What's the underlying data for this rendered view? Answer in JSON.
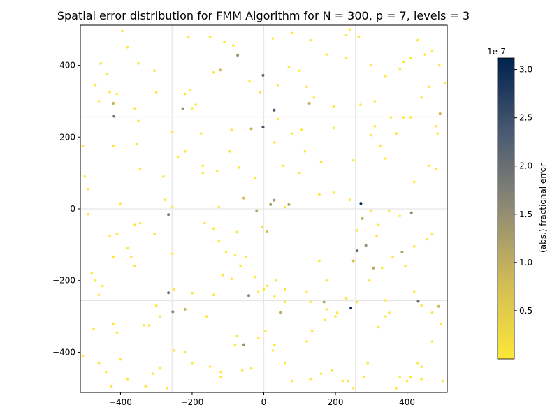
{
  "chart_data": {
    "type": "scatter",
    "title": "Spatial error distribution for FMM Algorithm for N = 300, p = 7, levels = 3",
    "xlabel": "",
    "ylabel": "",
    "xlim": [
      -512,
      512
    ],
    "ylim": [
      -512,
      512
    ],
    "xticks": [
      -400,
      -200,
      0,
      200,
      400
    ],
    "yticks": [
      -400,
      -200,
      0,
      200,
      400
    ],
    "tick_labels": {
      "x": [
        "−400",
        "−200",
        "0",
        "200",
        "400"
      ],
      "y": [
        "−400",
        "−200",
        "0",
        "200",
        "400"
      ]
    },
    "grid": true,
    "grid_lines": [
      -256,
      0,
      256
    ],
    "colormap": "cividis_r",
    "colorbar": {
      "label": "(abs.) fractional error",
      "offset_text": "1e-7",
      "vmin": 0.0,
      "vmax": 3.12,
      "ticks": [
        0.5,
        1.0,
        1.5,
        2.0,
        2.5,
        3.0
      ],
      "tick_labels": [
        "0.5",
        "1.0",
        "1.5",
        "2.0",
        "2.5",
        "3.0"
      ],
      "color_low": "#fde737",
      "color_high": "#00224e"
    },
    "points": [
      [
        271,
        15,
        3.1
      ],
      [
        243,
        -277,
        2.9
      ],
      [
        -2,
        228,
        2.5
      ],
      [
        29,
        275,
        2.4
      ],
      [
        -2,
        372,
        2.1
      ],
      [
        261,
        -117,
        2.1
      ],
      [
        431,
        -258,
        2.0
      ],
      [
        -266,
        -234,
        1.9
      ],
      [
        -418,
        258,
        1.8
      ],
      [
        -266,
        -16,
        1.8
      ],
      [
        -42,
        -242,
        1.7
      ],
      [
        -254,
        -287,
        1.7
      ],
      [
        412,
        -11,
        1.6
      ],
      [
        285,
        -102,
        1.5
      ],
      [
        -226,
        279,
        1.5
      ],
      [
        -73,
        428,
        1.4
      ],
      [
        -56,
        -379,
        1.4
      ],
      [
        19,
        12,
        1.3
      ],
      [
        29,
        24,
        1.3
      ],
      [
        70,
        12,
        1.2
      ],
      [
        386,
        -121,
        1.2
      ],
      [
        306,
        -165,
        1.1
      ],
      [
        168,
        -260,
        1.1
      ],
      [
        -20,
        -5,
        1.1
      ],
      [
        127,
        294,
        1.0
      ],
      [
        48,
        -289,
        1.0
      ],
      [
        275,
        -27,
        1.0
      ],
      [
        -220,
        -280,
        0.9
      ],
      [
        -420,
        294,
        0.9
      ],
      [
        -35,
        223,
        0.9
      ],
      [
        492,
        265,
        0.8
      ],
      [
        -122,
        387,
        0.8
      ],
      [
        488,
        -272,
        0.8
      ],
      [
        9,
        -63,
        0.7
      ],
      [
        -56,
        30,
        0.7
      ],
      [
        250,
        -145,
        0.7
      ]
    ],
    "points_low": [
      [
        -455,
        405
      ],
      [
        -438,
        375
      ],
      [
        -395,
        495
      ],
      [
        -380,
        450
      ],
      [
        -350,
        405
      ],
      [
        -305,
        385
      ],
      [
        -210,
        478
      ],
      [
        -150,
        480
      ],
      [
        -110,
        465
      ],
      [
        -85,
        455
      ],
      [
        25,
        475
      ],
      [
        80,
        490
      ],
      [
        130,
        470
      ],
      [
        175,
        430
      ],
      [
        230,
        485
      ],
      [
        240,
        500
      ],
      [
        265,
        480
      ],
      [
        300,
        400
      ],
      [
        340,
        370
      ],
      [
        380,
        390
      ],
      [
        390,
        410
      ],
      [
        410,
        420
      ],
      [
        430,
        470
      ],
      [
        450,
        430
      ],
      [
        470,
        440
      ],
      [
        490,
        400
      ],
      [
        505,
        350
      ],
      [
        -470,
        345
      ],
      [
        -460,
        300
      ],
      [
        -430,
        325
      ],
      [
        -410,
        320
      ],
      [
        -360,
        280
      ],
      [
        -300,
        325
      ],
      [
        -220,
        320
      ],
      [
        -205,
        330
      ],
      [
        -190,
        290
      ],
      [
        -200,
        280
      ],
      [
        -140,
        380
      ],
      [
        -90,
        220
      ],
      [
        -40,
        355
      ],
      [
        -10,
        325
      ],
      [
        40,
        345
      ],
      [
        70,
        395
      ],
      [
        100,
        385
      ],
      [
        120,
        340
      ],
      [
        140,
        310
      ],
      [
        195,
        285
      ],
      [
        230,
        420
      ],
      [
        270,
        290
      ],
      [
        310,
        300
      ],
      [
        355,
        255
      ],
      [
        390,
        255
      ],
      [
        410,
        255
      ],
      [
        440,
        310
      ],
      [
        460,
        340
      ],
      [
        480,
        230
      ],
      [
        485,
        210
      ],
      [
        -420,
        175
      ],
      [
        -350,
        245
      ],
      [
        -355,
        180
      ],
      [
        -255,
        215
      ],
      [
        -240,
        145
      ],
      [
        -220,
        160
      ],
      [
        -175,
        210
      ],
      [
        -170,
        120
      ],
      [
        -130,
        105
      ],
      [
        -95,
        160
      ],
      [
        -70,
        115
      ],
      [
        -25,
        85
      ],
      [
        30,
        185
      ],
      [
        40,
        250
      ],
      [
        55,
        120
      ],
      [
        80,
        210
      ],
      [
        105,
        220
      ],
      [
        115,
        160
      ],
      [
        160,
        130
      ],
      [
        195,
        225
      ],
      [
        250,
        135
      ],
      [
        300,
        205
      ],
      [
        310,
        230
      ],
      [
        325,
        175
      ],
      [
        340,
        140
      ],
      [
        370,
        210
      ],
      [
        420,
        75
      ],
      [
        460,
        120
      ],
      [
        480,
        110
      ],
      [
        -505,
        175
      ],
      [
        -500,
        90
      ],
      [
        -490,
        55
      ],
      [
        -400,
        15
      ],
      [
        -345,
        110
      ],
      [
        -280,
        90
      ],
      [
        -275,
        25
      ],
      [
        -255,
        5
      ],
      [
        -170,
        100
      ],
      [
        -125,
        5
      ],
      [
        -75,
        -65
      ],
      [
        -5,
        -50
      ],
      [
        60,
        5
      ],
      [
        100,
        100
      ],
      [
        155,
        40
      ],
      [
        195,
        45
      ],
      [
        240,
        25
      ],
      [
        300,
        -5
      ],
      [
        320,
        -45
      ],
      [
        350,
        -5
      ],
      [
        380,
        -20
      ],
      [
        455,
        -85
      ],
      [
        470,
        -70
      ],
      [
        -490,
        -15
      ],
      [
        -480,
        -180
      ],
      [
        -470,
        -200
      ],
      [
        -430,
        -75
      ],
      [
        -410,
        -70
      ],
      [
        -370,
        -135
      ],
      [
        -360,
        -45
      ],
      [
        -345,
        -40
      ],
      [
        -305,
        -70
      ],
      [
        -255,
        -125
      ],
      [
        -165,
        -40
      ],
      [
        -140,
        -55
      ],
      [
        -125,
        -90
      ],
      [
        -105,
        -120
      ],
      [
        -80,
        -130
      ],
      [
        -50,
        -135
      ],
      [
        -25,
        -190
      ],
      [
        10,
        -215
      ],
      [
        30,
        -245
      ],
      [
        60,
        -225
      ],
      [
        120,
        -230
      ],
      [
        155,
        -145
      ],
      [
        175,
        -200
      ],
      [
        205,
        -290
      ],
      [
        260,
        -60
      ],
      [
        295,
        -200
      ],
      [
        315,
        -75
      ],
      [
        330,
        -165
      ],
      [
        360,
        -135
      ],
      [
        395,
        -160
      ],
      [
        420,
        -105
      ],
      [
        -460,
        -240
      ],
      [
        -450,
        -215
      ],
      [
        -420,
        -135
      ],
      [
        -380,
        -110
      ],
      [
        -360,
        -160
      ],
      [
        -320,
        -325
      ],
      [
        -290,
        -300
      ],
      [
        -250,
        -225
      ],
      [
        -200,
        -235
      ],
      [
        -160,
        -300
      ],
      [
        -140,
        -240
      ],
      [
        -115,
        -185
      ],
      [
        -90,
        -195
      ],
      [
        -65,
        -160
      ],
      [
        -15,
        -230
      ],
      [
        0,
        -225
      ],
      [
        35,
        -200
      ],
      [
        60,
        -260
      ],
      [
        130,
        -260
      ],
      [
        175,
        -280
      ],
      [
        200,
        -300
      ],
      [
        230,
        -250
      ],
      [
        260,
        -260
      ],
      [
        340,
        -255
      ],
      [
        350,
        -290
      ],
      [
        420,
        -230
      ],
      [
        440,
        -270
      ],
      [
        470,
        -290
      ],
      [
        -475,
        -335
      ],
      [
        -460,
        -430
      ],
      [
        -420,
        -320
      ],
      [
        -410,
        -345
      ],
      [
        -400,
        -420
      ],
      [
        -380,
        -475
      ],
      [
        -335,
        -325
      ],
      [
        -300,
        -270
      ],
      [
        -290,
        -445
      ],
      [
        -270,
        -500
      ],
      [
        -220,
        -400
      ],
      [
        -200,
        -430
      ],
      [
        -150,
        -440
      ],
      [
        -120,
        -470
      ],
      [
        -80,
        -380
      ],
      [
        -60,
        -450
      ],
      [
        -35,
        -445
      ],
      [
        5,
        -340
      ],
      [
        30,
        -380
      ],
      [
        60,
        -430
      ],
      [
        120,
        -370
      ],
      [
        135,
        -340
      ],
      [
        170,
        -310
      ],
      [
        190,
        -450
      ],
      [
        220,
        -480
      ],
      [
        250,
        -500
      ],
      [
        280,
        -470
      ],
      [
        320,
        -330
      ],
      [
        340,
        -300
      ],
      [
        380,
        -470
      ],
      [
        400,
        -480
      ],
      [
        430,
        -430
      ],
      [
        440,
        -440
      ],
      [
        470,
        -370
      ],
      [
        500,
        -480
      ],
      [
        495,
        -320
      ],
      [
        -505,
        -410
      ],
      [
        -440,
        -455
      ],
      [
        -425,
        -495
      ],
      [
        -330,
        -495
      ],
      [
        -310,
        -460
      ],
      [
        -250,
        -395
      ],
      [
        -120,
        -455
      ],
      [
        -75,
        -355
      ],
      [
        -15,
        -360
      ],
      [
        25,
        -395
      ],
      [
        80,
        -480
      ],
      [
        130,
        -475
      ],
      [
        160,
        -460
      ],
      [
        235,
        -480
      ],
      [
        290,
        -430
      ],
      [
        370,
        -500
      ],
      [
        410,
        -470
      ],
      [
        440,
        -475
      ]
    ]
  }
}
